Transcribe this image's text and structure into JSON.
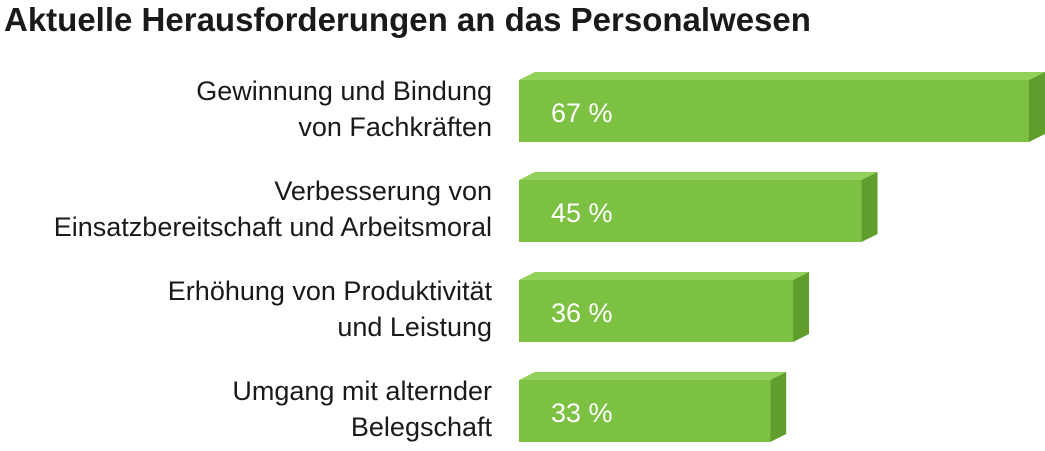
{
  "chart_data": {
    "type": "bar",
    "orientation": "horizontal",
    "style": "3d",
    "title": "Aktuelle Herausforderungen an das Personalwesen",
    "categories": [
      [
        "Gewinnung und Bindung",
        "von Fachkräften"
      ],
      [
        "Verbesserung von",
        "Einsatzbereitschaft und Arbeitsmoral"
      ],
      [
        "Erhöhung von Produktivität",
        "und Leistung"
      ],
      [
        "Umgang mit alternder",
        "Belegschaft"
      ]
    ],
    "values": [
      67,
      45,
      36,
      33
    ],
    "data_labels": [
      "67 %",
      "45 %",
      "36 %",
      "33 %"
    ],
    "unit": "%",
    "colors": {
      "bar_front": "#7dc142",
      "bar_top": "#92d15a",
      "bar_side": "#5f9e2c",
      "label_text": "#1a1a1a",
      "value_text": "#ffffff"
    }
  }
}
